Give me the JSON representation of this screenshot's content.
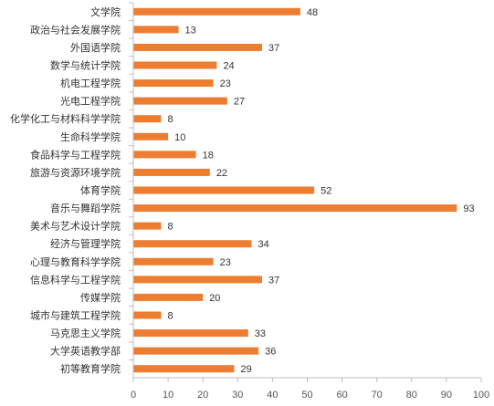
{
  "chart_data": {
    "type": "bar",
    "orientation": "horizontal",
    "title": "",
    "xlabel": "",
    "ylabel": "",
    "xlim": [
      0,
      100
    ],
    "x_ticks": [
      0,
      10,
      20,
      30,
      40,
      50,
      60,
      70,
      80,
      90,
      100
    ],
    "x_tick_labels": [
      "0",
      "10",
      "20",
      "30",
      "40",
      "50",
      "60",
      "70",
      "80",
      "90",
      "100"
    ],
    "grid": false,
    "legend": "none",
    "bar_color": "#ED7D31",
    "categories": [
      "文学院",
      "政治与社会发展学院",
      "外国语学院",
      "数学与统计学院",
      "机电工程学院",
      "光电工程学院",
      "化学化工与材料科学学院",
      "生命科学学院",
      "食品科学与工程学院",
      "旅游与资源环境学院",
      "体育学院",
      "音乐与舞蹈学院",
      "美术与艺术设计学院",
      "经济与管理学院",
      "心理与教育科学学院",
      "信息科学与工程学院",
      "传媒学院",
      "城市与建筑工程学院",
      "马克思主义学院",
      "大学英语教学部",
      "初等教育学院"
    ],
    "values": [
      48,
      13,
      37,
      24,
      23,
      27,
      8,
      10,
      18,
      22,
      52,
      93,
      8,
      34,
      23,
      37,
      20,
      8,
      33,
      36,
      29
    ],
    "value_labels": [
      "48",
      "13",
      "37",
      "24",
      "23",
      "27",
      "8",
      "10",
      "18",
      "22",
      "52",
      "93",
      "8",
      "34",
      "23",
      "37",
      "20",
      "8",
      "33",
      "36",
      "29"
    ]
  }
}
